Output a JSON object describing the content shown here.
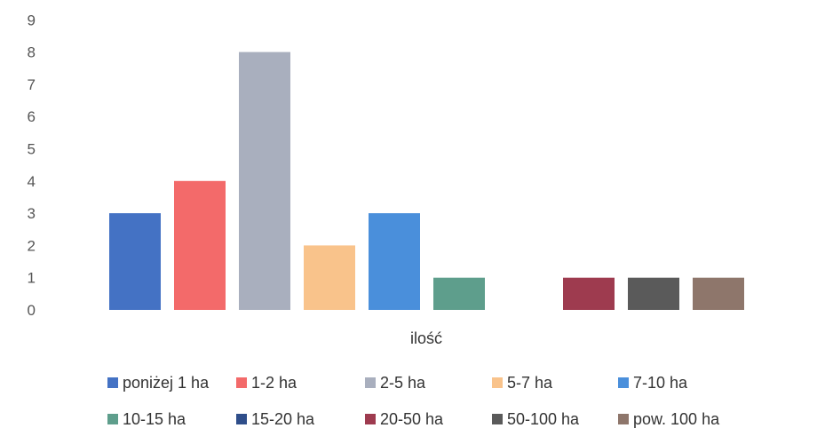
{
  "chart_data": {
    "type": "bar",
    "xlabel": "ilość",
    "ylim": [
      0,
      9
    ],
    "y_ticks": [
      0,
      1,
      2,
      3,
      4,
      5,
      6,
      7,
      8,
      9
    ],
    "grid": false,
    "legend_position": "bottom",
    "series": [
      {
        "name": "poniżej 1 ha",
        "value": 3,
        "color": "#4472C4"
      },
      {
        "name": "1-2 ha",
        "value": 4,
        "color": "#F36A6A"
      },
      {
        "name": "2-5 ha",
        "value": 8,
        "color": "#A9AFBE"
      },
      {
        "name": "5-7 ha",
        "value": 2,
        "color": "#F9C38B"
      },
      {
        "name": "7-10 ha",
        "value": 3,
        "color": "#4A8FDB"
      },
      {
        "name": "10-15 ha",
        "value": 1,
        "color": "#5E9E8C"
      },
      {
        "name": "15-20 ha",
        "value": 0,
        "color": "#2F4E8A"
      },
      {
        "name": "20-50 ha",
        "value": 1,
        "color": "#9E3B4F"
      },
      {
        "name": "50-100 ha",
        "value": 1,
        "color": "#5A5A5A"
      },
      {
        "name": "pow. 100 ha",
        "value": 1,
        "color": "#8E766B"
      }
    ]
  }
}
